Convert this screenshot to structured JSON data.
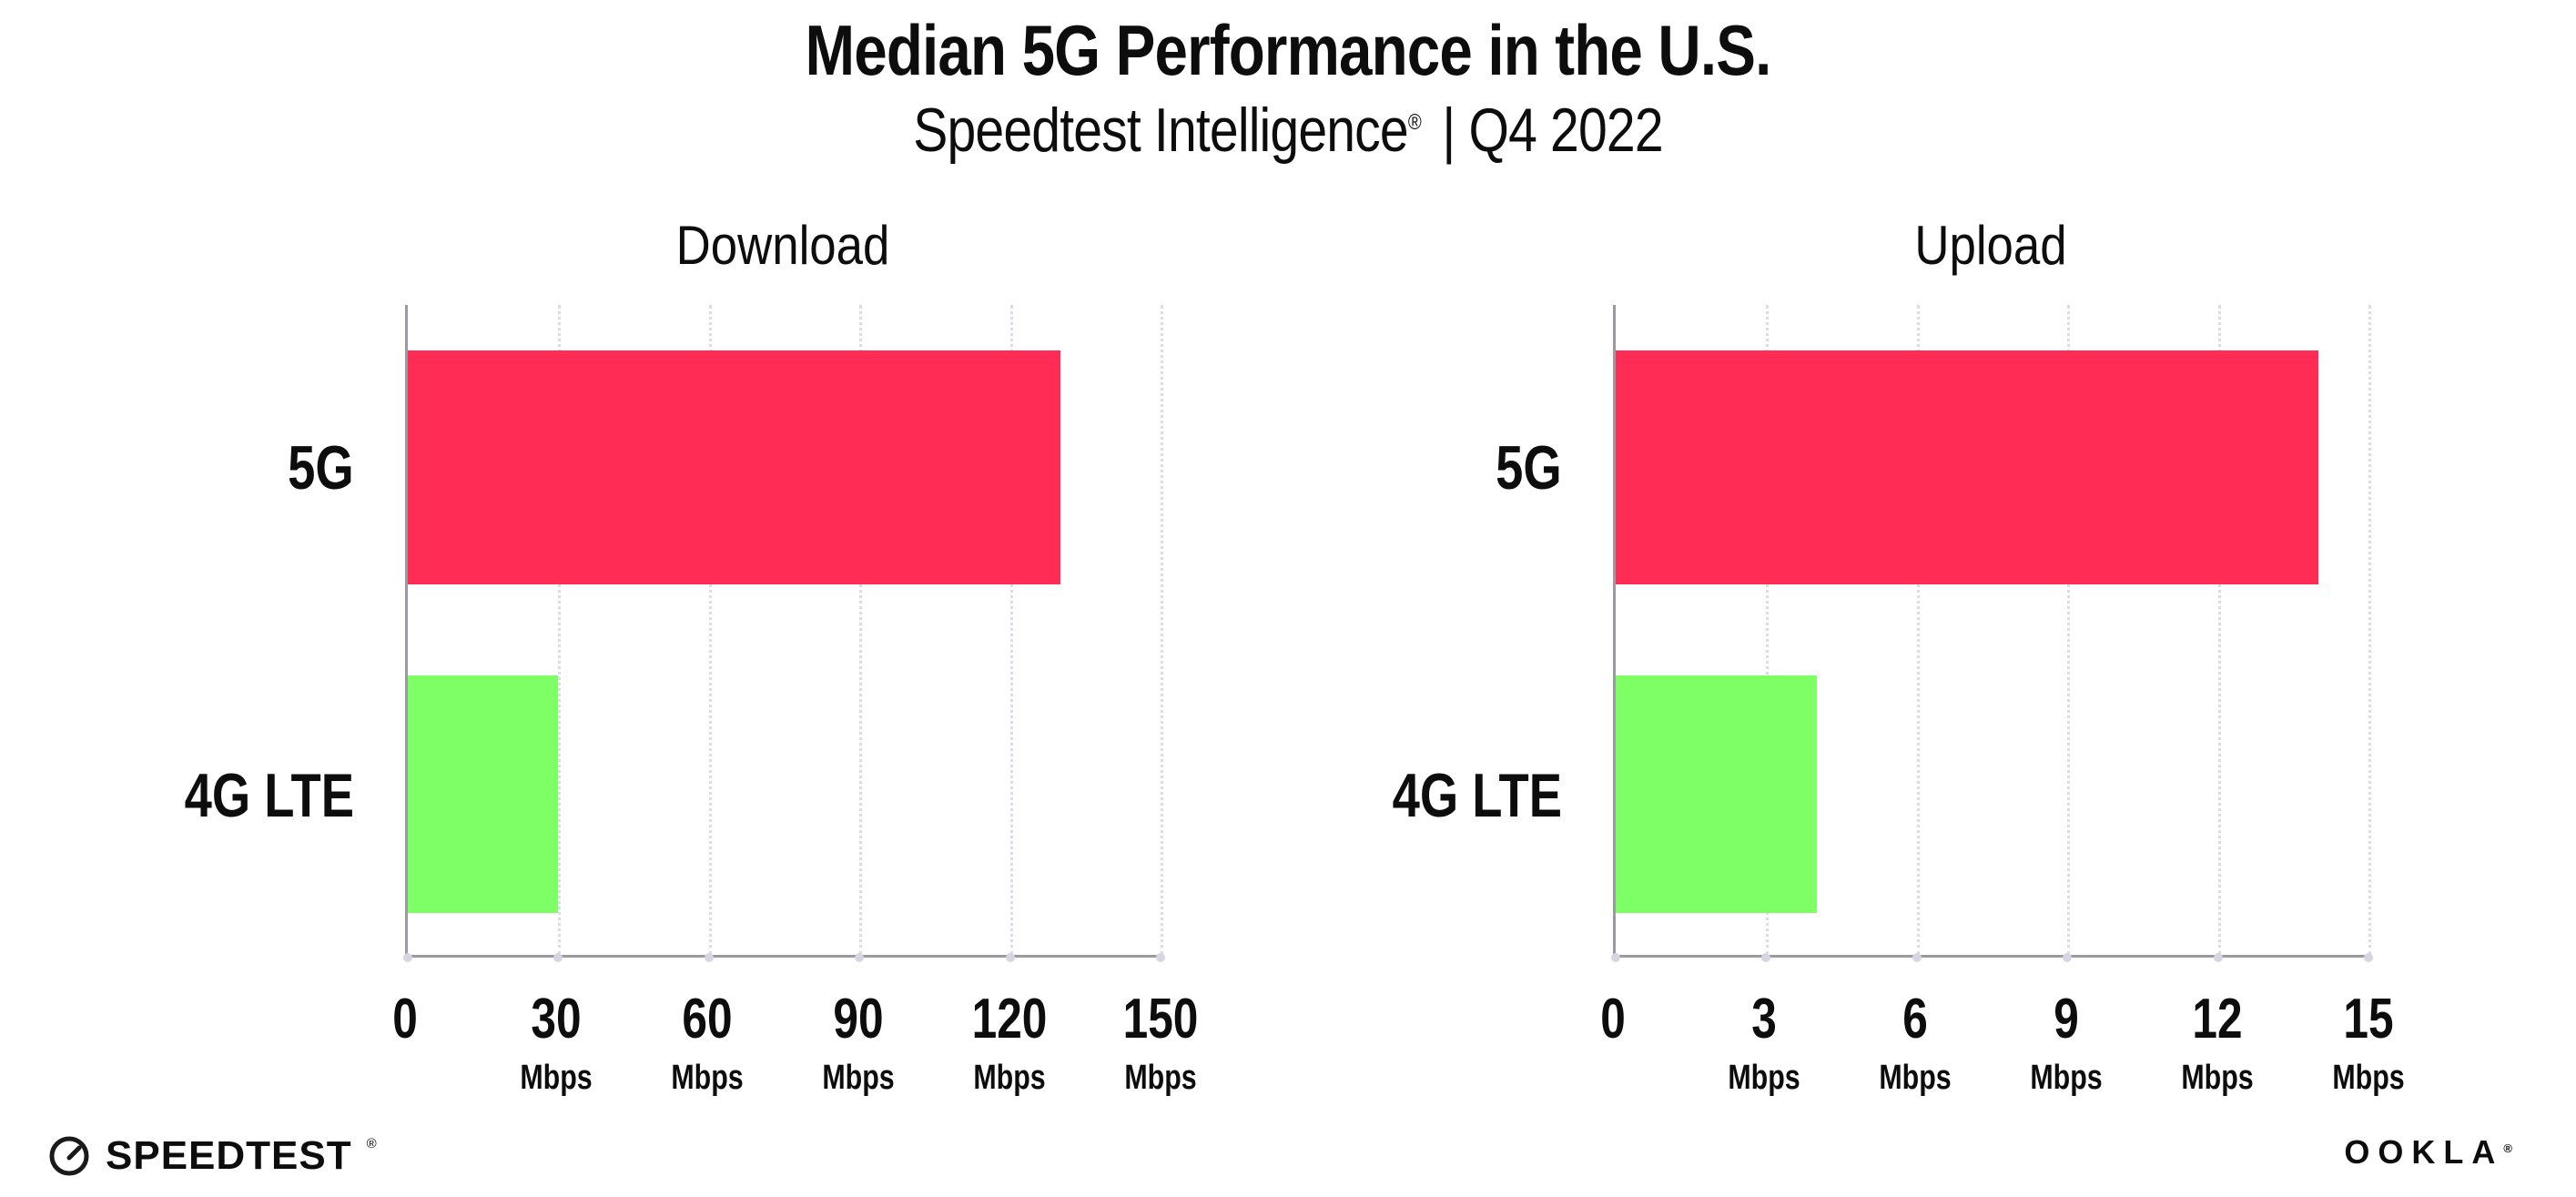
{
  "header": {
    "title": "Median 5G Performance in the U.S.",
    "subtitle": {
      "brand": "Speedtest Intelligence",
      "registered": "®",
      "separator": "|",
      "period": "Q4 2022"
    }
  },
  "chart_data": [
    {
      "type": "bar",
      "orientation": "horizontal",
      "title": "Download",
      "categories": [
        "5G",
        "4G LTE"
      ],
      "values": [
        130,
        30
      ],
      "unit": "Mbps",
      "xlim": [
        0,
        150
      ],
      "xticks": [
        0,
        30,
        60,
        90,
        120,
        150
      ],
      "xtick_labels": [
        "0",
        "30",
        "60",
        "90",
        "120",
        "150"
      ],
      "xtick_unit": "Mbps",
      "bar_colors": [
        "#ff2d55",
        "#7fff66"
      ],
      "grid": "vertical dotted gridlines at each tick",
      "legend": "none",
      "value_labels_shown": false
    },
    {
      "type": "bar",
      "orientation": "horizontal",
      "title": "Upload",
      "categories": [
        "5G",
        "4G LTE"
      ],
      "values": [
        14,
        4
      ],
      "unit": "Mbps",
      "xlim": [
        0,
        15
      ],
      "xticks": [
        0,
        3,
        6,
        9,
        12,
        15
      ],
      "xtick_labels": [
        "0",
        "3",
        "6",
        "9",
        "12",
        "15"
      ],
      "xtick_unit": "Mbps",
      "bar_colors": [
        "#ff2d55",
        "#7fff66"
      ],
      "grid": "vertical dotted gridlines at each tick",
      "legend": "none",
      "value_labels_shown": false
    }
  ],
  "footer": {
    "speedtest": {
      "icon": "gauge-icon",
      "label": "SPEEDTEST",
      "registered": "®"
    },
    "ookla": {
      "label": "OOKLA",
      "registered": "®"
    }
  },
  "colors": {
    "bar_5g": "#ff2d55",
    "bar_4g_lte": "#7fff66",
    "gridline": "#dcdce6",
    "axis": "#9a9aa0",
    "text": "#0d0d0d",
    "background": "#ffffff"
  }
}
